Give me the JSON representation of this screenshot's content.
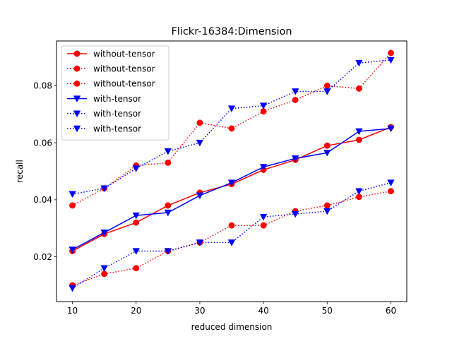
{
  "chart_data": {
    "type": "line",
    "title": "Flickr-16384:Dimension",
    "xlabel": "reduced dimension",
    "ylabel": "recall",
    "xlim": [
      7.5,
      62.5
    ],
    "ylim": [
      0.0043,
      0.0957
    ],
    "xticks": [
      10,
      20,
      30,
      40,
      50,
      60
    ],
    "xtick_labels": [
      "10",
      "20",
      "30",
      "40",
      "50",
      "60"
    ],
    "yticks": [
      0.02,
      0.04,
      0.06,
      0.08
    ],
    "ytick_labels": [
      "0.02",
      "0.04",
      "0.06",
      "0.08"
    ],
    "grid": false,
    "legend_position": "upper-left",
    "x": [
      10,
      15,
      20,
      25,
      30,
      35,
      40,
      45,
      50,
      55,
      60
    ],
    "series": [
      {
        "name": "without-tensor",
        "color": "#ff0000",
        "linestyle": "solid",
        "marker": "circle",
        "values": [
          0.022,
          0.028,
          0.032,
          0.038,
          0.0425,
          0.0455,
          0.0505,
          0.054,
          0.059,
          0.061,
          0.0655
        ]
      },
      {
        "name": "without-tensor",
        "color": "#ff0000",
        "linestyle": "dotted",
        "marker": "circle",
        "values": [
          0.038,
          0.044,
          0.052,
          0.053,
          0.067,
          0.065,
          0.071,
          0.075,
          0.08,
          0.079,
          0.0915
        ]
      },
      {
        "name": "without-tensor",
        "color": "#ff0000",
        "linestyle": "dotted",
        "marker": "circle",
        "values": [
          0.01,
          0.014,
          0.016,
          0.022,
          0.025,
          0.031,
          0.031,
          0.036,
          0.038,
          0.041,
          0.043
        ]
      },
      {
        "name": "with-tensor",
        "color": "#0000ff",
        "linestyle": "solid",
        "marker": "triangle-down",
        "values": [
          0.0225,
          0.0285,
          0.0345,
          0.0355,
          0.0415,
          0.046,
          0.0515,
          0.0545,
          0.0565,
          0.064,
          0.065
        ]
      },
      {
        "name": "with-tensor",
        "color": "#0000ff",
        "linestyle": "dotted",
        "marker": "triangle-down",
        "values": [
          0.042,
          0.044,
          0.051,
          0.057,
          0.06,
          0.072,
          0.073,
          0.078,
          0.078,
          0.088,
          0.089
        ]
      },
      {
        "name": "with-tensor",
        "color": "#0000ff",
        "linestyle": "dotted",
        "marker": "triangle-down",
        "values": [
          0.009,
          0.016,
          0.022,
          0.022,
          0.025,
          0.025,
          0.034,
          0.035,
          0.036,
          0.043,
          0.046
        ]
      }
    ]
  }
}
